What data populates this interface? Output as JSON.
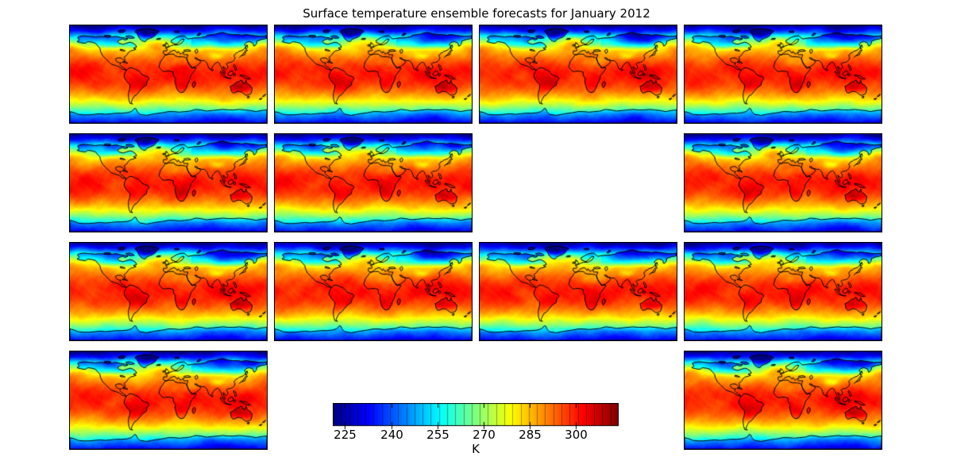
{
  "title": "Surface temperature ensemble forecasts for January 2012",
  "colorbar": {
    "label": "K",
    "ticks": [
      225,
      240,
      255,
      270,
      285,
      300
    ],
    "vmin": 221,
    "vmax": 314,
    "segments": 35
  },
  "grid": {
    "rows": 4,
    "cols": 4,
    "cells": [
      [
        1,
        1,
        1,
        1
      ],
      [
        1,
        1,
        0,
        1
      ],
      [
        1,
        1,
        1,
        1
      ],
      [
        1,
        0,
        0,
        1
      ]
    ]
  },
  "chart_data": {
    "type": "heatmap",
    "title": "Surface temperature ensemble forecasts for January 2012",
    "variable": "surface temperature",
    "units": "K",
    "colormap": "jet",
    "value_range": [
      221,
      314
    ],
    "colorbar_ticks": [
      225,
      240,
      255,
      270,
      285,
      300
    ],
    "colorbar_label": "K",
    "n_ensemble_members": 13,
    "subplot_grid": {
      "rows": 4,
      "cols": 4,
      "occupied_cells": [
        [
          0,
          0
        ],
        [
          0,
          1
        ],
        [
          0,
          2
        ],
        [
          0,
          3
        ],
        [
          1,
          0
        ],
        [
          1,
          1
        ],
        [
          1,
          3
        ],
        [
          2,
          0
        ],
        [
          2,
          1
        ],
        [
          2,
          2
        ],
        [
          2,
          3
        ],
        [
          3,
          0
        ],
        [
          3,
          3
        ]
      ]
    },
    "projection": {
      "type": "equirectangular",
      "lon_range": [
        -180,
        180
      ],
      "lat_range": [
        -90,
        90
      ]
    },
    "zonal_mean_temperature": {
      "lat": [
        90,
        75,
        60,
        45,
        30,
        15,
        0,
        -15,
        -30,
        -45,
        -60,
        -75,
        -90
      ],
      "K": [
        228,
        238,
        262,
        280,
        291,
        298,
        301,
        301,
        293,
        283,
        268,
        248,
        235
      ]
    }
  },
  "geo": {
    "land": [
      {
        "name": "north-america",
        "pts": [
          -166,
          68,
          -163,
          63,
          -167,
          60,
          -160,
          58,
          -152,
          57,
          -147,
          60,
          -140,
          59,
          -133,
          57,
          -130,
          53,
          -125,
          48,
          -124,
          42,
          -120,
          34,
          -114,
          28,
          -109,
          23,
          -105,
          19,
          -97,
          16,
          -93,
          15,
          -89,
          13,
          -84,
          9,
          -79,
          8,
          -77,
          7,
          -78,
          9,
          -82,
          12,
          -86,
          15,
          -89,
          18,
          -86,
          21,
          -91,
          21,
          -95,
          24,
          -97,
          28,
          -93,
          30,
          -87,
          30,
          -83,
          27,
          -80,
          24,
          -79,
          27,
          -81,
          31,
          -76,
          35,
          -73,
          40,
          -69,
          43,
          -64,
          44,
          -59,
          46,
          -64,
          48,
          -58,
          50,
          -60,
          54,
          -66,
          58,
          -70,
          59,
          -77,
          57,
          -83,
          55,
          -90,
          57,
          -93,
          60,
          -89,
          63,
          -84,
          65,
          -79,
          63,
          -74,
          65,
          -80,
          67,
          -88,
          68,
          -95,
          70,
          -104,
          69,
          -114,
          69,
          -124,
          70,
          -134,
          69,
          -144,
          70,
          -154,
          71,
          -162,
          70,
          -166,
          68
        ]
      },
      {
        "name": "greenland",
        "pts": [
          -58,
          76,
          -61,
          78,
          -59,
          81,
          -50,
          83,
          -40,
          84,
          -29,
          83,
          -21,
          81,
          -17,
          79,
          -22,
          75,
          -24,
          71,
          -29,
          68,
          -34,
          66,
          -39,
          64,
          -42,
          60,
          -47,
          61,
          -51,
          64,
          -54,
          68,
          -56,
          72,
          -58,
          76
        ]
      },
      {
        "name": "baffin",
        "pts": [
          -75,
          67,
          -68,
          66,
          -62,
          67,
          -66,
          70,
          -72,
          71,
          -78,
          70,
          -75,
          67
        ]
      },
      {
        "name": "victoria-island",
        "pts": [
          -115,
          69,
          -108,
          68,
          -105,
          71,
          -112,
          72,
          -118,
          71,
          -115,
          69
        ]
      },
      {
        "name": "ellesmere",
        "pts": [
          -90,
          77,
          -82,
          77,
          -78,
          81,
          -86,
          82,
          -92,
          80,
          -90,
          77
        ]
      },
      {
        "name": "south-america",
        "pts": [
          -77,
          7,
          -71,
          12,
          -64,
          11,
          -60,
          9,
          -54,
          6,
          -50,
          2,
          -48,
          -1,
          -43,
          -3,
          -37,
          -5,
          -35,
          -9,
          -39,
          -13,
          -40,
          -20,
          -47,
          -25,
          -53,
          -32,
          -58,
          -38,
          -62,
          -40,
          -65,
          -45,
          -68,
          -52,
          -65,
          -55,
          -70,
          -54,
          -72,
          -48,
          -73,
          -42,
          -73,
          -35,
          -71,
          -28,
          -70,
          -20,
          -73,
          -17,
          -77,
          -12,
          -81,
          -5,
          -80,
          1,
          -77,
          7
        ]
      },
      {
        "name": "africa",
        "pts": [
          -6,
          35,
          1,
          37,
          10,
          37,
          12,
          34,
          18,
          32,
          25,
          32,
          31,
          31,
          33,
          29,
          35,
          24,
          37,
          19,
          40,
          15,
          43,
          11,
          48,
          12,
          51,
          11,
          46,
          4,
          41,
          -2,
          40,
          -7,
          38,
          -13,
          35,
          -19,
          33,
          -25,
          28,
          -33,
          23,
          -34,
          19,
          -32,
          16,
          -28,
          14,
          -22,
          12,
          -14,
          13,
          -8,
          9,
          -2,
          9,
          4,
          5,
          5,
          0,
          6,
          -5,
          5,
          -10,
          5,
          -14,
          9,
          -17,
          13,
          -16,
          18,
          -14,
          24,
          -10,
          29,
          -6,
          35
        ]
      },
      {
        "name": "madagascar",
        "pts": [
          44,
          -16,
          48,
          -13,
          50,
          -16,
          49,
          -21,
          46,
          -25,
          44,
          -22,
          44,
          -16
        ]
      },
      {
        "name": "eurasia",
        "pts": [
          -9,
          43,
          -9,
          38,
          -6,
          36,
          -2,
          36,
          0,
          38,
          3,
          41,
          7,
          43,
          12,
          44,
          15,
          40,
          17,
          39,
          18,
          42,
          20,
          40,
          22,
          37,
          24,
          38,
          26,
          40,
          29,
          41,
          27,
          38,
          28,
          36,
          31,
          36,
          36,
          36,
          35,
          33,
          34,
          31,
          34,
          28,
          36,
          22,
          40,
          16,
          44,
          12,
          50,
          14,
          55,
          18,
          59,
          22,
          57,
          26,
          52,
          27,
          48,
          30,
          52,
          30,
          54,
          27,
          58,
          26,
          61,
          25,
          66,
          25,
          68,
          23,
          71,
          20,
          72,
          16,
          74,
          11,
          77,
          8,
          80,
          12,
          82,
          16,
          86,
          20,
          89,
          22,
          91,
          22,
          93,
          20,
          95,
          16,
          97,
          13,
          98,
          9,
          100,
          5,
          103,
          1,
          104,
          3,
          102,
          7,
          101,
          10,
          100,
          14,
          102,
          13,
          105,
          9,
          107,
          10,
          109,
          12,
          108,
          16,
          106,
          19,
          108,
          21,
          110,
          21,
          114,
          22,
          117,
          23,
          120,
          26,
          122,
          30,
          121,
          32,
          120,
          34,
          122,
          37,
          124,
          39,
          127,
          40,
          129,
          42,
          132,
          43,
          135,
          44,
          138,
          46,
          140,
          48,
          142,
          52,
          139,
          54,
          141,
          57,
          144,
          59,
          148,
          60,
          151,
          59,
          155,
          57,
          156,
          52,
          158,
          52,
          161,
          56,
          162,
          61,
          165,
          62,
          170,
          64,
          176,
          65,
          180,
          66,
          180,
          71,
          174,
          70,
          166,
          70,
          158,
          71,
          150,
          72,
          142,
          73,
          134,
          72,
          126,
          73,
          118,
          73,
          110,
          74,
          103,
          76,
          99,
          77,
          93,
          76,
          86,
          74,
          79,
          73,
          72,
          72,
          67,
          69,
          61,
          68,
          54,
          67,
          48,
          67,
          42,
          66,
          36,
          65,
          33,
          67,
          30,
          70,
          28,
          71,
          20,
          70,
          15,
          68,
          10,
          65,
          5,
          62,
          6,
          58,
          10,
          57,
          13,
          55,
          17,
          57,
          20,
          60,
          23,
          63,
          26,
          65,
          29,
          64,
          27,
          61,
          25,
          58,
          21,
          56,
          18,
          54,
          13,
          54,
          9,
          54,
          7,
          53,
          4,
          52,
          1,
          50,
          -2,
          49,
          -5,
          48,
          -2,
          46,
          -3,
          43,
          -9,
          43
        ]
      },
      {
        "name": "britain",
        "pts": [
          -5,
          50,
          1,
          51,
          1,
          53,
          -1,
          55,
          -3,
          58,
          -5,
          58,
          -4,
          55,
          -6,
          53,
          -5,
          50
        ]
      },
      {
        "name": "ireland",
        "pts": [
          -10,
          52,
          -6,
          52,
          -6,
          55,
          -10,
          54,
          -10,
          52
        ]
      },
      {
        "name": "iceland",
        "pts": [
          -22,
          64,
          -15,
          64,
          -14,
          66,
          -20,
          66,
          -22,
          64
        ]
      },
      {
        "name": "svalbard",
        "pts": [
          12,
          77,
          20,
          77,
          19,
          80,
          11,
          79,
          12,
          77
        ]
      },
      {
        "name": "novaya-zemlya",
        "pts": [
          52,
          71,
          56,
          71,
          60,
          75,
          56,
          76,
          52,
          71
        ]
      },
      {
        "name": "japan",
        "pts": [
          130,
          31,
          133,
          34,
          137,
          35,
          140,
          36,
          141,
          40,
          143,
          43,
          145,
          44,
          142,
          45,
          139,
          41,
          136,
          36,
          132,
          33,
          130,
          31
        ]
      },
      {
        "name": "sakhalin",
        "pts": [
          142,
          46,
          145,
          50,
          144,
          54,
          141,
          50,
          142,
          46
        ]
      },
      {
        "name": "sumatra",
        "pts": [
          95,
          5,
          99,
          3,
          103,
          -2,
          106,
          -6,
          103,
          -6,
          99,
          -2,
          95,
          3,
          95,
          5
        ]
      },
      {
        "name": "java",
        "pts": [
          106,
          -6,
          111,
          -7,
          115,
          -8,
          111,
          -8,
          106,
          -7,
          106,
          -6
        ]
      },
      {
        "name": "borneo",
        "pts": [
          109,
          1,
          113,
          5,
          117,
          6,
          119,
          2,
          116,
          -2,
          112,
          -3,
          109,
          -1,
          109,
          1
        ]
      },
      {
        "name": "sulawesi",
        "pts": [
          119,
          0,
          122,
          1,
          123,
          -2,
          121,
          -4,
          119,
          -2,
          119,
          0
        ]
      },
      {
        "name": "new-guinea",
        "pts": [
          131,
          -1,
          136,
          -2,
          141,
          -3,
          146,
          -6,
          150,
          -9,
          146,
          -9,
          141,
          -8,
          135,
          -4,
          131,
          -3,
          131,
          -1
        ]
      },
      {
        "name": "philippines",
        "pts": [
          120,
          18,
          122,
          16,
          124,
          12,
          125,
          8,
          122,
          7,
          121,
          12,
          119,
          16,
          120,
          18
        ]
      },
      {
        "name": "sri-lanka",
        "pts": [
          80,
          9,
          82,
          8,
          81,
          6,
          79,
          7,
          80,
          9
        ]
      },
      {
        "name": "cuba",
        "pts": [
          -84,
          22,
          -78,
          21,
          -74,
          20,
          -78,
          23,
          -84,
          23,
          -84,
          22
        ]
      },
      {
        "name": "australia",
        "pts": [
          113,
          -22,
          114,
          -26,
          115,
          -31,
          118,
          -35,
          122,
          -34,
          126,
          -32,
          130,
          -32,
          134,
          -33,
          136,
          -35,
          138,
          -36,
          140,
          -38,
          143,
          -39,
          147,
          -38,
          150,
          -37,
          152,
          -33,
          153,
          -28,
          153,
          -25,
          151,
          -24,
          149,
          -20,
          146,
          -19,
          143,
          -15,
          142,
          -11,
          140,
          -17,
          136,
          -16,
          135,
          -12,
          132,
          -11,
          129,
          -14,
          126,
          -14,
          122,
          -17,
          118,
          -20,
          114,
          -22,
          113,
          -22
        ]
      },
      {
        "name": "tasmania",
        "pts": [
          145,
          -41,
          148,
          -41,
          147,
          -44,
          144,
          -43,
          145,
          -41
        ]
      },
      {
        "name": "new-zealand-north",
        "pts": [
          172,
          -41,
          176,
          -38,
          178,
          -37,
          175,
          -41,
          172,
          -41
        ]
      },
      {
        "name": "new-zealand-south",
        "pts": [
          166,
          -46,
          171,
          -44,
          169,
          -47,
          166,
          -46
        ]
      },
      {
        "name": "antarctica",
        "pts": [
          180,
          -90,
          180,
          -66,
          170,
          -67,
          160,
          -69,
          150,
          -67,
          140,
          -66,
          130,
          -65,
          120,
          -66,
          110,
          -66,
          100,
          -65,
          90,
          -66,
          80,
          -67,
          70,
          -68,
          60,
          -66,
          50,
          -65,
          40,
          -68,
          30,
          -69,
          20,
          -70,
          10,
          -69,
          0,
          -69,
          -10,
          -71,
          -25,
          -73,
          -40,
          -76,
          -52,
          -74,
          -57,
          -69,
          -59,
          -64,
          -62,
          -63,
          -64,
          -66,
          -68,
          -69,
          -75,
          -71,
          -85,
          -72,
          -95,
          -72,
          -105,
          -73,
          -115,
          -74,
          -125,
          -73,
          -135,
          -74,
          -145,
          -75,
          -155,
          -75,
          -165,
          -74,
          -172,
          -71,
          -180,
          -69,
          -180,
          -90
        ]
      }
    ],
    "lakes": [
      {
        "name": "black-sea",
        "pts": [
          28,
          44,
          33,
          45,
          38,
          45,
          41,
          43,
          36,
          42,
          30,
          42,
          28,
          44
        ]
      },
      {
        "name": "caspian-sea",
        "pts": [
          49,
          44,
          52,
          46,
          54,
          44,
          53,
          40,
          51,
          38,
          49,
          41,
          49,
          44
        ]
      },
      {
        "name": "great-lakes",
        "pts": [
          -88,
          46,
          -83,
          45,
          -79,
          43,
          -83,
          43,
          -88,
          44,
          -88,
          46
        ]
      }
    ]
  }
}
